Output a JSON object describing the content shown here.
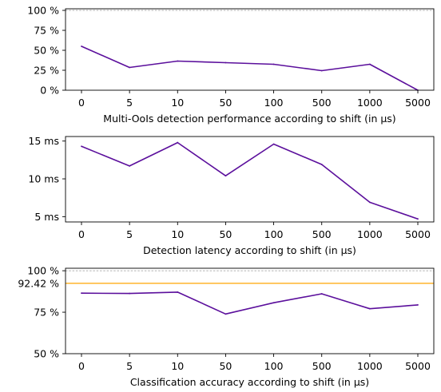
{
  "chart_data": [
    {
      "type": "line",
      "categories": [
        "0",
        "5",
        "10",
        "50",
        "100",
        "500",
        "1000",
        "5000"
      ],
      "series": [
        {
          "values": [
            55,
            28.5,
            36.5,
            34.5,
            32.5,
            24.5,
            32.5,
            0
          ]
        }
      ],
      "xlabel": "Multi-OoIs detection performance according to shift (in μs)",
      "ylim": [
        0,
        102
      ],
      "yticks": [
        0,
        25,
        50,
        75,
        100
      ],
      "ytick_labels": [
        "0 %",
        "25 %",
        "50 %",
        "75 %",
        "100 %"
      ],
      "reference_lines": [
        {
          "value": 100,
          "color": "#999999",
          "style": "dashed"
        }
      ]
    },
    {
      "type": "line",
      "categories": [
        "0",
        "5",
        "10",
        "50",
        "100",
        "500",
        "1000",
        "5000"
      ],
      "series": [
        {
          "values": [
            14.3,
            11.7,
            14.8,
            10.4,
            14.6,
            11.9,
            6.9,
            4.7
          ]
        }
      ],
      "xlabel": "Detection latency according to shift (in μs)",
      "ylim": [
        4.3,
        15.6
      ],
      "yticks": [
        5,
        10,
        15
      ],
      "ytick_labels": [
        "5 ms",
        "10 ms",
        "15 ms"
      ],
      "reference_lines": []
    },
    {
      "type": "line",
      "categories": [
        "0",
        "5",
        "10",
        "50",
        "100",
        "500",
        "1000",
        "5000"
      ],
      "series": [
        {
          "values": [
            86.5,
            86.3,
            87.1,
            73.9,
            80.7,
            86.1,
            77.1,
            79.4
          ]
        }
      ],
      "xlabel": "Classification accuracy according to shift (in μs)",
      "ylim": [
        50,
        101.5
      ],
      "yticks": [
        50,
        75,
        100
      ],
      "ytick_labels": [
        "50 %",
        "75 %",
        "100 %"
      ],
      "reference_lines": [
        {
          "value": 100,
          "color": "#999999",
          "style": "dashed"
        },
        {
          "value": 92.42,
          "color": "#ffa500",
          "style": "solid",
          "label": "92.42 %"
        }
      ]
    }
  ],
  "colors": {
    "series": "#5b0f9c",
    "axes": "#000000",
    "dashed_reference": "#999999",
    "highlight_reference": "#ffa500"
  }
}
